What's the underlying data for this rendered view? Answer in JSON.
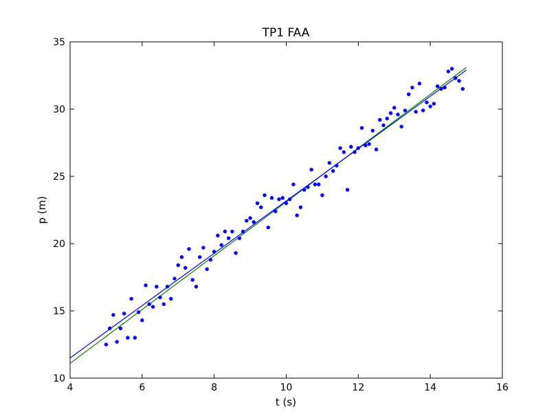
{
  "chart_data": {
    "type": "scatter",
    "title": "TP1 FAA",
    "xlabel": "t (s)",
    "ylabel": "p (m)",
    "xlim": [
      4,
      16
    ],
    "ylim": [
      10,
      35
    ],
    "xticks": [
      4,
      6,
      8,
      10,
      12,
      14,
      16
    ],
    "yticks": [
      10,
      15,
      20,
      25,
      30,
      35
    ],
    "xtick_labels": [
      "4",
      "6",
      "8",
      "10",
      "12",
      "14",
      "16"
    ],
    "ytick_labels": [
      "10",
      "15",
      "20",
      "25",
      "30",
      "35"
    ],
    "grid": false,
    "colors": {
      "points": "#0000ff",
      "fit_line": "#0000ff",
      "model_line": "#008000",
      "axes": "#000000",
      "background": "#ffffff"
    },
    "series": [
      {
        "type": "scatter",
        "points": [
          [
            5.0,
            12.5
          ],
          [
            5.1,
            13.7
          ],
          [
            5.2,
            14.7
          ],
          [
            5.3,
            12.7
          ],
          [
            5.4,
            13.7
          ],
          [
            5.5,
            14.8
          ],
          [
            5.6,
            13.0
          ],
          [
            5.7,
            15.9
          ],
          [
            5.8,
            13.0
          ],
          [
            5.9,
            14.9
          ],
          [
            6.0,
            14.3
          ],
          [
            6.1,
            16.9
          ],
          [
            6.2,
            15.5
          ],
          [
            6.3,
            15.3
          ],
          [
            6.4,
            16.8
          ],
          [
            6.5,
            16.0
          ],
          [
            6.6,
            15.5
          ],
          [
            6.7,
            16.8
          ],
          [
            6.8,
            15.9
          ],
          [
            6.9,
            17.4
          ],
          [
            7.0,
            18.4
          ],
          [
            7.1,
            19.0
          ],
          [
            7.2,
            18.2
          ],
          [
            7.3,
            19.6
          ],
          [
            7.4,
            17.3
          ],
          [
            7.5,
            16.8
          ],
          [
            7.6,
            19.0
          ],
          [
            7.7,
            19.7
          ],
          [
            7.8,
            18.1
          ],
          [
            7.9,
            18.8
          ],
          [
            8.0,
            19.4
          ],
          [
            8.1,
            20.6
          ],
          [
            8.2,
            19.9
          ],
          [
            8.3,
            20.9
          ],
          [
            8.4,
            20.4
          ],
          [
            8.5,
            20.9
          ],
          [
            8.6,
            19.3
          ],
          [
            8.7,
            20.4
          ],
          [
            8.8,
            20.9
          ],
          [
            8.9,
            21.7
          ],
          [
            9.0,
            21.9
          ],
          [
            9.1,
            21.6
          ],
          [
            9.2,
            23.0
          ],
          [
            9.3,
            22.7
          ],
          [
            9.4,
            23.6
          ],
          [
            9.5,
            21.2
          ],
          [
            9.6,
            23.4
          ],
          [
            9.7,
            22.4
          ],
          [
            9.8,
            23.3
          ],
          [
            9.9,
            23.4
          ],
          [
            10.0,
            23.0
          ],
          [
            10.1,
            23.3
          ],
          [
            10.2,
            24.4
          ],
          [
            10.3,
            22.1
          ],
          [
            10.4,
            22.7
          ],
          [
            10.5,
            24.0
          ],
          [
            10.6,
            24.2
          ],
          [
            10.7,
            25.5
          ],
          [
            10.8,
            24.4
          ],
          [
            10.9,
            24.4
          ],
          [
            11.0,
            23.6
          ],
          [
            11.1,
            25.0
          ],
          [
            11.2,
            26.0
          ],
          [
            11.3,
            25.4
          ],
          [
            11.4,
            25.8
          ],
          [
            11.5,
            27.1
          ],
          [
            11.6,
            26.8
          ],
          [
            11.7,
            24.0
          ],
          [
            11.8,
            27.2
          ],
          [
            11.9,
            26.8
          ],
          [
            12.0,
            27.1
          ],
          [
            12.1,
            28.6
          ],
          [
            12.2,
            27.3
          ],
          [
            12.3,
            27.4
          ],
          [
            12.4,
            28.4
          ],
          [
            12.5,
            27.0
          ],
          [
            12.6,
            29.2
          ],
          [
            12.7,
            28.8
          ],
          [
            12.8,
            29.3
          ],
          [
            12.9,
            29.7
          ],
          [
            13.0,
            30.1
          ],
          [
            13.1,
            29.6
          ],
          [
            13.2,
            28.7
          ],
          [
            13.3,
            29.9
          ],
          [
            13.4,
            31.1
          ],
          [
            13.5,
            31.6
          ],
          [
            13.6,
            29.8
          ],
          [
            13.7,
            31.9
          ],
          [
            13.8,
            29.9
          ],
          [
            13.9,
            30.5
          ],
          [
            14.0,
            30.2
          ],
          [
            14.1,
            30.4
          ],
          [
            14.2,
            31.7
          ],
          [
            14.3,
            31.5
          ],
          [
            14.4,
            31.6
          ],
          [
            14.5,
            32.8
          ],
          [
            14.6,
            33.0
          ],
          [
            14.7,
            32.3
          ],
          [
            14.8,
            32.1
          ],
          [
            14.9,
            31.5
          ]
        ]
      },
      {
        "type": "line",
        "points": [
          [
            4.0,
            11.5
          ],
          [
            15.0,
            32.9
          ]
        ]
      },
      {
        "type": "line",
        "points": [
          [
            4.0,
            11.1
          ],
          [
            15.0,
            33.1
          ]
        ]
      }
    ]
  }
}
